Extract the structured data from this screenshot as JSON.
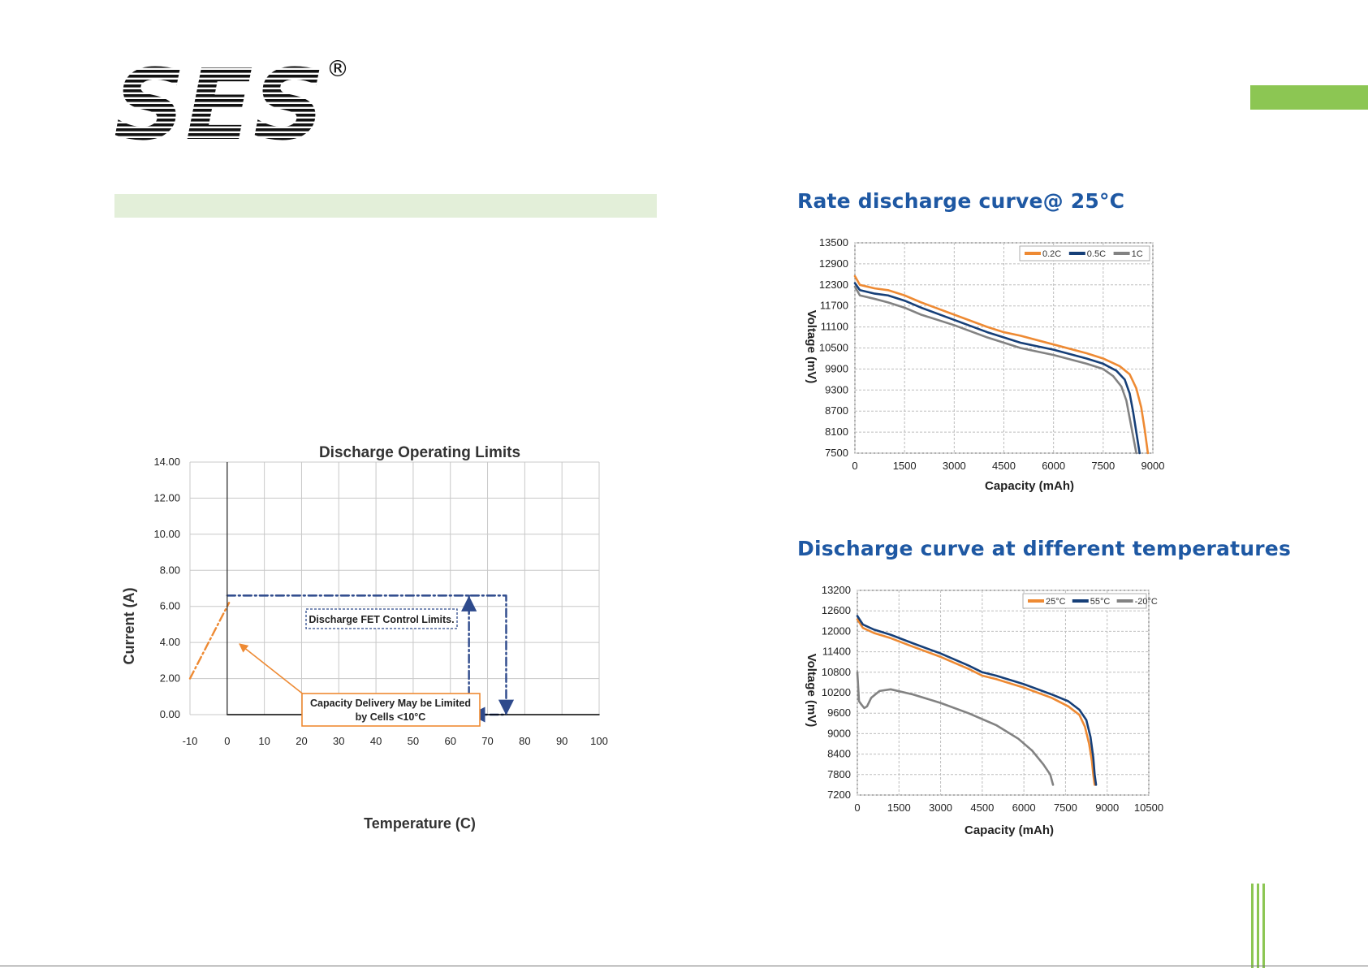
{
  "header": {
    "logo_text": "SES",
    "registered_mark": "®"
  },
  "colors": {
    "accent_green": "#8cc653",
    "band_green": "#e3efd9",
    "title_blue": "#1e58a3",
    "navy": "#2e4a8c",
    "orange": "#ee8a33",
    "gray": "#828282",
    "dark_blue": "#163f78"
  },
  "titles": {
    "rate_discharge": "Rate discharge curve@ 25°C",
    "temp_discharge": "Discharge curve at different temperatures"
  },
  "chart_data": [
    {
      "id": "discharge-operating-limits",
      "type": "line",
      "title": "Discharge Operating Limits",
      "xlabel": "Temperature (C)",
      "ylabel": "Current (A)",
      "xlim": [
        -10,
        100
      ],
      "ylim": [
        0,
        14
      ],
      "x_ticks": [
        -10,
        0,
        10,
        20,
        30,
        40,
        50,
        60,
        70,
        80,
        90,
        100
      ],
      "y_ticks": [
        "0.00",
        "2.00",
        "4.00",
        "6.00",
        "8.00",
        "10.00",
        "12.00",
        "14.00"
      ],
      "grid": true,
      "series": [
        {
          "name": "",
          "style": "dash-dot",
          "color": "#2e4a8c",
          "x": [
            0,
            75,
            75,
            65,
            65
          ],
          "y": [
            6.6,
            6.6,
            0,
            0,
            6.6
          ]
        },
        {
          "name": "",
          "style": "dash-dot",
          "color": "#ee8a33",
          "x": [
            -10,
            0.5
          ],
          "y": [
            2,
            6.2
          ]
        },
        {
          "name": "",
          "style": "solid",
          "color": "#000000",
          "x": [
            0,
            100
          ],
          "y": [
            0,
            0
          ]
        }
      ],
      "annotations": [
        {
          "text": "Discharge FET Control Limits."
        },
        {
          "text": "Capacity Delivery May be Limited by Cells <10°C",
          "line1": "Capacity Delivery May be Limited",
          "line2": "by Cells <10°C"
        }
      ]
    },
    {
      "id": "rate-discharge",
      "type": "line",
      "title": "Rate discharge curve@ 25°C",
      "xlabel": "Capacity (mAh)",
      "ylabel": "Voltage (mV)",
      "xlim": [
        0,
        9000
      ],
      "ylim": [
        7500,
        13500
      ],
      "x_ticks": [
        0,
        1500,
        3000,
        4500,
        6000,
        7500,
        9000
      ],
      "y_ticks": [
        7500,
        8100,
        8700,
        9300,
        9900,
        10500,
        11100,
        11700,
        12300,
        12900,
        13500
      ],
      "grid": true,
      "legend": "top-right",
      "series": [
        {
          "name": "0.2C",
          "color": "#ee8a33",
          "x": [
            0,
            150,
            600,
            1000,
            1500,
            2000,
            3000,
            4000,
            4500,
            5000,
            6000,
            7000,
            7500,
            8000,
            8300,
            8500,
            8650,
            8750,
            8850
          ],
          "y": [
            12550,
            12300,
            12200,
            12150,
            12000,
            11800,
            11450,
            11100,
            10950,
            10850,
            10600,
            10350,
            10200,
            9980,
            9750,
            9350,
            8800,
            8200,
            7500
          ]
        },
        {
          "name": "0.5C",
          "color": "#163f78",
          "x": [
            0,
            150,
            600,
            1000,
            1500,
            2000,
            3000,
            4000,
            4500,
            5000,
            6000,
            7000,
            7500,
            7900,
            8150,
            8300,
            8400,
            8500,
            8600
          ],
          "y": [
            12350,
            12150,
            12050,
            12000,
            11850,
            11650,
            11300,
            10950,
            10800,
            10650,
            10450,
            10200,
            10050,
            9850,
            9600,
            9200,
            8700,
            8100,
            7500
          ]
        },
        {
          "name": "1C",
          "color": "#828282",
          "x": [
            0,
            150,
            600,
            1000,
            1500,
            2000,
            3000,
            4000,
            4500,
            5000,
            6000,
            7000,
            7500,
            7800,
            8050,
            8200,
            8300,
            8400,
            8500
          ],
          "y": [
            12250,
            12000,
            11900,
            11800,
            11650,
            11450,
            11150,
            10800,
            10650,
            10500,
            10300,
            10050,
            9900,
            9700,
            9400,
            9000,
            8500,
            8000,
            7500
          ]
        }
      ]
    },
    {
      "id": "temperature-discharge",
      "type": "line",
      "title": "Discharge curve at different temperatures",
      "xlabel": "Capacity (mAh)",
      "ylabel": "Voltage (mV)",
      "xlim": [
        0,
        10500
      ],
      "ylim": [
        7200,
        13200
      ],
      "x_ticks": [
        0,
        1500,
        3000,
        4500,
        6000,
        7500,
        9000,
        10500
      ],
      "y_ticks": [
        7200,
        7800,
        8400,
        9000,
        9600,
        10200,
        10800,
        11400,
        12000,
        12600,
        13200
      ],
      "grid": true,
      "legend": "top-right",
      "series": [
        {
          "name": "25°C",
          "color": "#ee8a33",
          "x": [
            0,
            200,
            600,
            1200,
            2000,
            3000,
            4000,
            4500,
            5000,
            6000,
            7000,
            7600,
            8000,
            8200,
            8350,
            8450,
            8500,
            8550
          ],
          "y": [
            12350,
            12100,
            11950,
            11800,
            11550,
            11250,
            10900,
            10700,
            10600,
            10350,
            10050,
            9800,
            9550,
            9200,
            8700,
            8200,
            7800,
            7500
          ]
        },
        {
          "name": "55°C",
          "color": "#163f78",
          "x": [
            0,
            200,
            600,
            1200,
            2000,
            3000,
            4000,
            4500,
            5000,
            6000,
            7000,
            7600,
            8000,
            8250,
            8400,
            8500,
            8550,
            8600
          ],
          "y": [
            12450,
            12200,
            12050,
            11900,
            11650,
            11350,
            11000,
            10800,
            10700,
            10450,
            10150,
            9950,
            9700,
            9400,
            8900,
            8300,
            7800,
            7500
          ]
        },
        {
          "name": "-20°C",
          "color": "#828282",
          "x": [
            0,
            60,
            150,
            250,
            350,
            500,
            800,
            1200,
            2000,
            3000,
            4000,
            5000,
            5800,
            6300,
            6700,
            6950,
            7050
          ],
          "y": [
            10800,
            9950,
            9850,
            9750,
            9800,
            10050,
            10250,
            10300,
            10150,
            9900,
            9600,
            9250,
            8850,
            8500,
            8100,
            7800,
            7500
          ]
        }
      ]
    }
  ]
}
